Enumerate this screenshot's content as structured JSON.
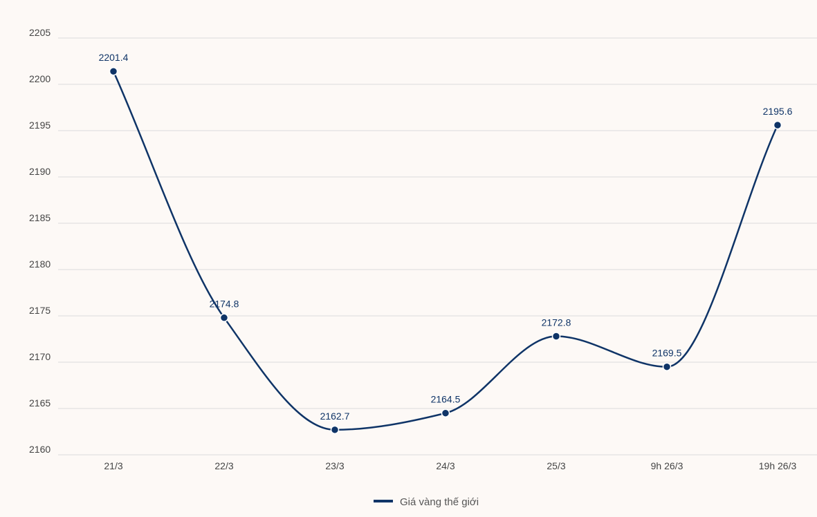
{
  "chart_data": {
    "type": "line",
    "categories": [
      "21/3",
      "22/3",
      "23/3",
      "24/3",
      "25/3",
      "9h 26/3",
      "19h 26/3"
    ],
    "series": [
      {
        "name": "Giá vàng thế giới",
        "values": [
          2201.4,
          2174.8,
          2162.7,
          2164.5,
          2172.8,
          2169.5,
          2195.6
        ],
        "labels": [
          "2201.4",
          "2174.8",
          "2162.7",
          "2164.5",
          "2172.8",
          "2169.5",
          "2195.6"
        ]
      }
    ],
    "yticks": [
      "2160",
      "2165",
      "2170",
      "2175",
      "2180",
      "2185",
      "2190",
      "2195",
      "2200",
      "2205"
    ],
    "ylim": [
      2160,
      2205
    ],
    "grid": true,
    "legend_position": "bottom-center",
    "colors": {
      "line": "#0f3467",
      "grid": "#dcdcdc",
      "background": "#fdf9f6"
    }
  }
}
